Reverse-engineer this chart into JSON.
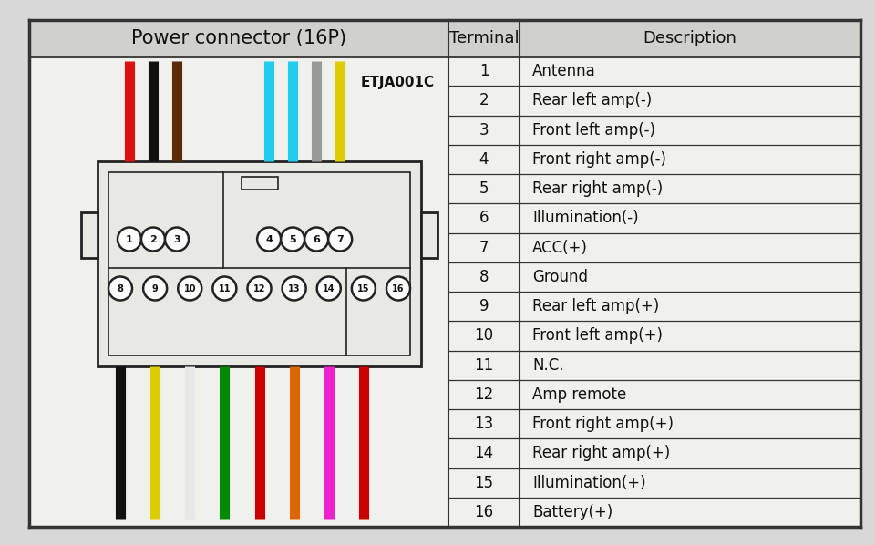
{
  "title": "Power connector (16P)",
  "col2_header": "Terminal",
  "col3_header": "Description",
  "label_code": "ETJA001C",
  "terminals": [
    1,
    2,
    3,
    4,
    5,
    6,
    7,
    8,
    9,
    10,
    11,
    12,
    13,
    14,
    15,
    16
  ],
  "descriptions": [
    "Antenna",
    "Rear left amp(-)",
    "Front left amp(-)",
    "Front right amp(-)",
    "Rear right amp(-)",
    "Illumination(-)",
    "ACC(+)",
    "Ground",
    "Rear left amp(+)",
    "Front left amp(+)",
    "N.C.",
    "Amp remote",
    "Front right amp(+)",
    "Rear right amp(+)",
    "Illumination(+)",
    "Battery(+)"
  ],
  "bg_color": "#d8d8d8",
  "table_bg": "#f0f0ec",
  "border_color": "#333333",
  "top_row_colors": [
    "#dd1111",
    "#111111",
    "#5c2a0a",
    "#22ccee",
    "#22ccee",
    "#999999",
    "#ddcc00"
  ],
  "bottom_row_colors": [
    "#111111",
    "#ddcc00",
    "#e8e8e8",
    "#008800",
    "#cc0000",
    "#dd6600",
    "#ee22cc",
    "#cc0000"
  ],
  "connector_fill": "#e8e8e4",
  "connector_outline": "#222222",
  "watermark_color": "#c0b090"
}
